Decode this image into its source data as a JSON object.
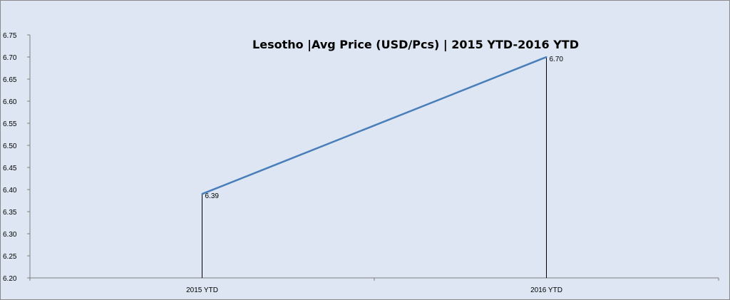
{
  "chart_data": {
    "type": "line",
    "title": "Lesotho  |Avg Price (USD/Pcs) | 2015 YTD-2016 YTD",
    "categories": [
      "2015 YTD",
      "2016 YTD"
    ],
    "series": [
      {
        "values": [
          6.39,
          6.7
        ],
        "data_labels": [
          "6.39",
          "6.70"
        ],
        "color": "#4a7ebb"
      }
    ],
    "ylim": [
      6.2,
      6.75
    ],
    "yticks": [
      "6.20",
      "6.25",
      "6.30",
      "6.35",
      "6.40",
      "6.45",
      "6.50",
      "6.55",
      "6.60",
      "6.65",
      "6.70",
      "6.75"
    ],
    "drop_lines": true,
    "grid": false,
    "legend": "none",
    "plot_background": "#dde6f2"
  }
}
